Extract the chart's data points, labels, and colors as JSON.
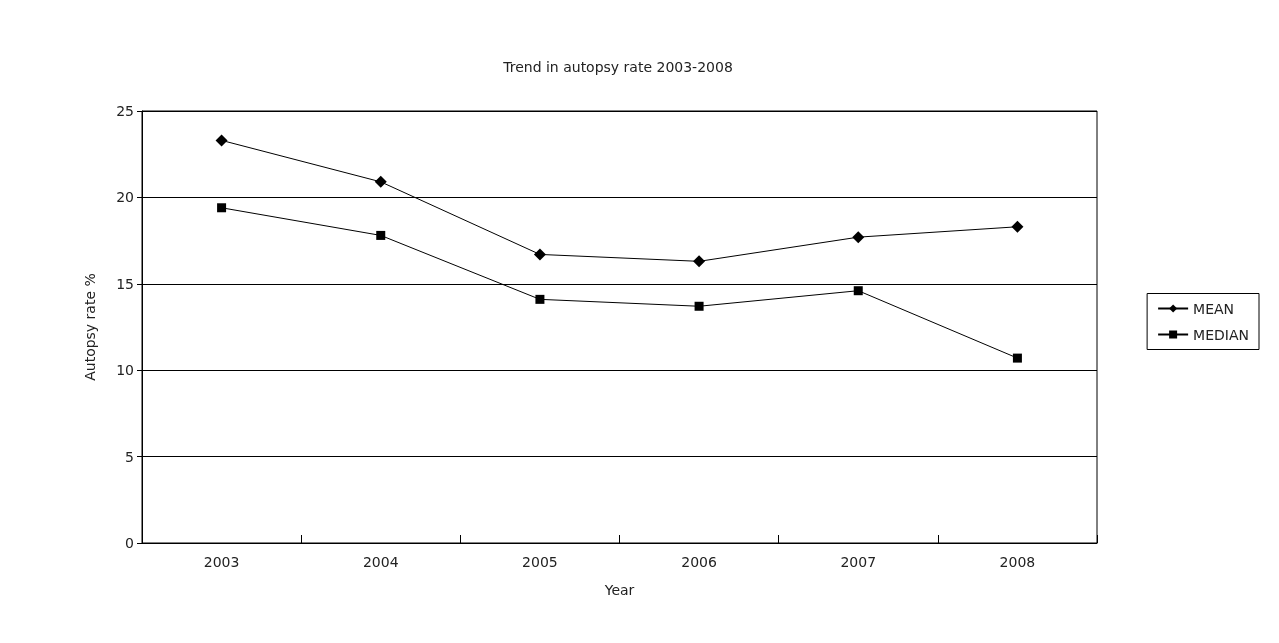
{
  "chart_data": {
    "type": "line",
    "title": "Trend in autopsy rate 2003-2008",
    "xlabel": "Year",
    "ylabel": "Autopsy rate %",
    "categories": [
      "2003",
      "2004",
      "2005",
      "2006",
      "2007",
      "2008"
    ],
    "series": [
      {
        "name": "MEAN",
        "color": "#000000",
        "marker": "diamond",
        "values": [
          23.3,
          20.9,
          16.7,
          16.3,
          17.7,
          18.3
        ]
      },
      {
        "name": "MEDIAN",
        "color": "#000000",
        "marker": "square",
        "values": [
          19.4,
          17.8,
          14.1,
          13.7,
          14.6,
          10.7
        ]
      }
    ],
    "ylim": [
      0,
      25
    ],
    "yticks": [
      0,
      5,
      10,
      15,
      20,
      25
    ],
    "grid": "y",
    "legend": "right",
    "line_style": "solid"
  }
}
